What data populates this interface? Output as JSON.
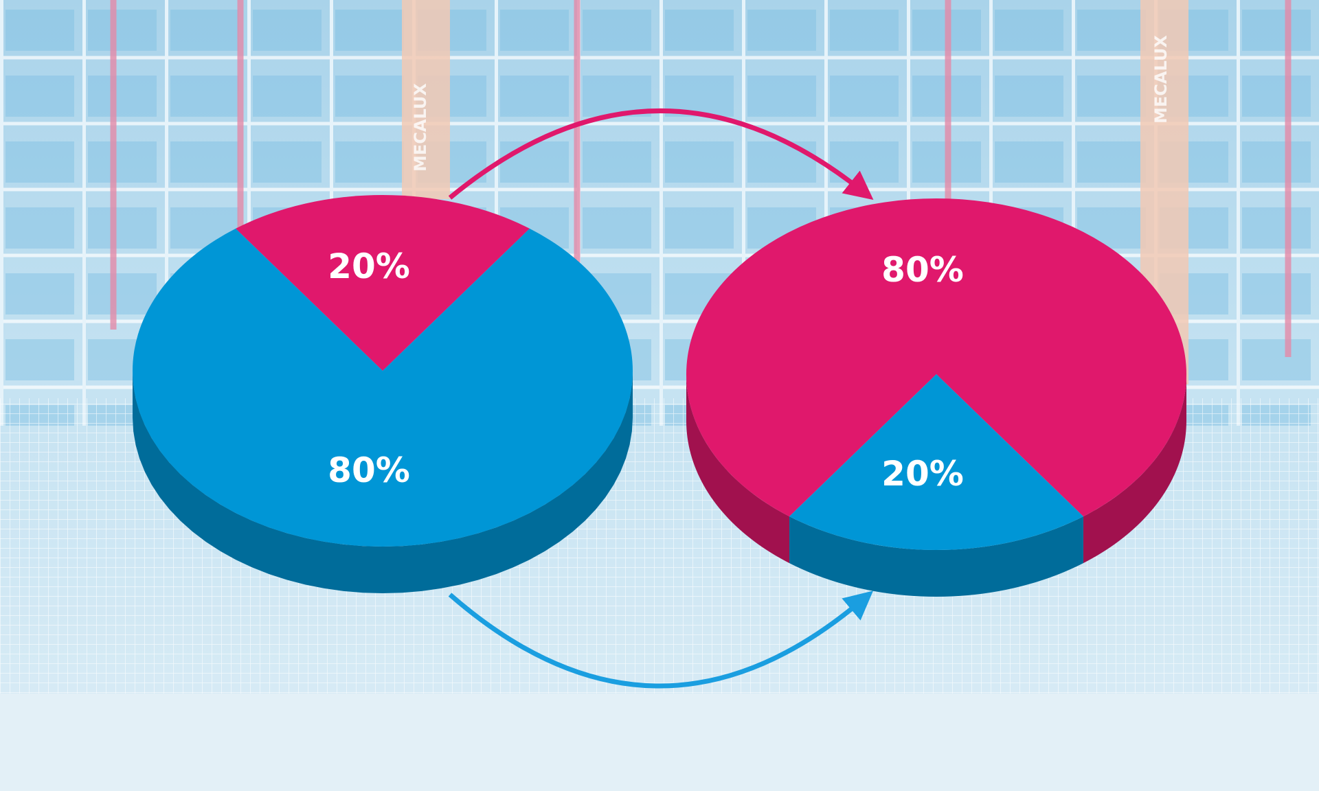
{
  "photo_text": [
    "MECALUX",
    "MECALUX"
  ],
  "chart_data": [
    {
      "type": "pie",
      "values": [
        20,
        80
      ],
      "value_labels": [
        "20%",
        "80%"
      ],
      "colors": [
        "#e0186c",
        "#0096d6"
      ],
      "start_angle": -126
    },
    {
      "type": "pie",
      "values": [
        80,
        20
      ],
      "value_labels": [
        "80%",
        "20%"
      ],
      "colors": [
        "#e0186c",
        "#0096d6"
      ],
      "start_angle": 126
    }
  ]
}
